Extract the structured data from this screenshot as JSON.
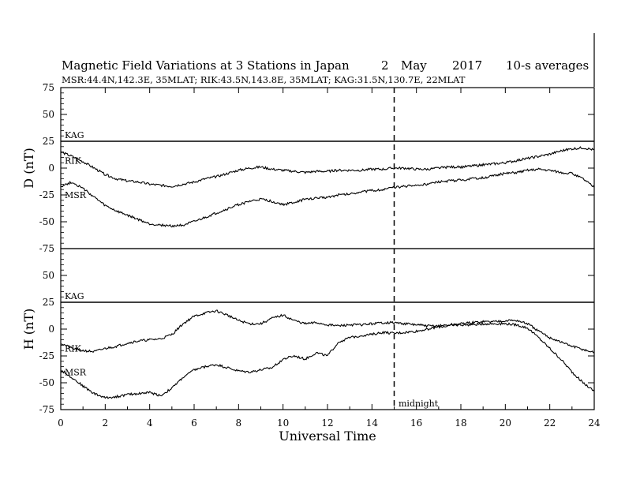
{
  "header": {
    "title": "Magnetic Field Variations at 3 Stations in Japan",
    "day": "2",
    "month": "May",
    "year": "2017",
    "averaging": "10-s averages",
    "stations_line": "MSR:44.4N,142.3E, 35MLAT;  RIK:43.5N,143.8E, 35MLAT;  KAG:31.5N,130.7E, 22MLAT"
  },
  "chart_data": {
    "type": "line",
    "xlabel": "Universal Time",
    "xlim": [
      0,
      24
    ],
    "x_ticks": [
      "0",
      "2",
      "4",
      "6",
      "8",
      "10",
      "12",
      "14",
      "16",
      "18",
      "20",
      "22",
      "24"
    ],
    "midnight_label": "midnight",
    "midnight_ut": 15,
    "panels": [
      {
        "ylabel": "D (nT)",
        "ylim": [
          -75,
          75
        ],
        "y_ticks": [
          "75",
          "50",
          "25",
          "0",
          "-25",
          "-50",
          "-75"
        ],
        "series": [
          {
            "name": "KAG",
            "x": [
              0,
              24
            ],
            "values": [
              25,
              25
            ]
          },
          {
            "name": "RIK",
            "x": [
              0,
              0.5,
              1,
              1.5,
              2,
              2.5,
              3,
              3.5,
              4,
              4.5,
              5,
              5.5,
              6,
              6.5,
              7,
              7.5,
              8,
              8.5,
              9,
              9.5,
              10,
              10.5,
              11,
              11.5,
              12,
              12.5,
              13,
              13.5,
              14,
              14.5,
              15,
              15.5,
              16,
              16.5,
              17,
              17.5,
              18,
              18.5,
              19,
              19.5,
              20,
              20.5,
              21,
              21.5,
              22,
              22.5,
              23,
              23.5,
              24
            ],
            "values": [
              15,
              11,
              6,
              0,
              -6,
              -10,
              -12,
              -13,
              -15,
              -16,
              -17,
              -15,
              -13,
              -10,
              -8,
              -5,
              -2,
              0,
              1,
              -1,
              -2,
              -3,
              -4,
              -3,
              -3,
              -2,
              -2,
              -2,
              -1,
              -1,
              0,
              0,
              -1,
              -1,
              0,
              1,
              1,
              2,
              3,
              4,
              5,
              7,
              9,
              11,
              13,
              16,
              18,
              19,
              17
            ]
          },
          {
            "name": "MSR",
            "x": [
              0,
              0.5,
              1,
              1.5,
              2,
              2.5,
              3,
              3.5,
              4,
              4.5,
              5,
              5.5,
              6,
              6.5,
              7,
              7.5,
              8,
              8.5,
              9,
              9.5,
              10,
              10.5,
              11,
              11.5,
              12,
              12.5,
              13,
              13.5,
              14,
              14.5,
              15,
              15.5,
              16,
              16.5,
              17,
              17.5,
              18,
              18.5,
              19,
              19.5,
              20,
              20.5,
              21,
              21.5,
              22,
              22.5,
              23,
              23.5,
              24
            ],
            "values": [
              -17,
              -13,
              -19,
              -27,
              -35,
              -40,
              -44,
              -48,
              -52,
              -53,
              -54,
              -53,
              -50,
              -46,
              -42,
              -38,
              -34,
              -31,
              -29,
              -31,
              -34,
              -32,
              -29,
              -28,
              -27,
              -25,
              -24,
              -22,
              -21,
              -20,
              -18,
              -17,
              -16,
              -15,
              -13,
              -12,
              -11,
              -10,
              -9,
              -7,
              -5,
              -4,
              -2,
              -1,
              -2,
              -4,
              -5,
              -10,
              -18
            ]
          }
        ]
      },
      {
        "ylabel": "H (nT)",
        "ylim": [
          -75,
          75
        ],
        "y_ticks": [
          "75",
          "50",
          "25",
          "0",
          "-25",
          "-50",
          "-75"
        ],
        "series": [
          {
            "name": "KAG",
            "x": [
              0,
              24
            ],
            "values": [
              25,
              25
            ]
          },
          {
            "name": "RIK",
            "x": [
              0,
              0.5,
              1,
              1.5,
              2,
              2.5,
              3,
              3.5,
              4,
              4.5,
              5,
              5.5,
              6,
              6.5,
              7,
              7.5,
              8,
              8.5,
              9,
              9.5,
              10,
              10.5,
              11,
              11.5,
              12,
              12.5,
              13,
              13.5,
              14,
              14.5,
              15,
              15.5,
              16,
              16.5,
              17,
              17.5,
              18,
              18.5,
              19,
              19.5,
              20,
              20.5,
              21,
              21.5,
              22,
              22.5,
              23,
              23.5,
              24
            ],
            "values": [
              -13,
              -18,
              -20,
              -21,
              -18,
              -16,
              -13,
              -11,
              -10,
              -9,
              -5,
              5,
              12,
              15,
              17,
              13,
              8,
              5,
              5,
              10,
              13,
              8,
              5,
              6,
              4,
              3,
              4,
              4,
              5,
              6,
              6,
              5,
              4,
              3,
              3,
              4,
              5,
              6,
              7,
              7,
              8,
              8,
              5,
              -2,
              -8,
              -12,
              -16,
              -19,
              -22
            ]
          },
          {
            "name": "MSR",
            "x": [
              0,
              0.5,
              1,
              1.5,
              2,
              2.5,
              3,
              3.5,
              4,
              4.5,
              5,
              5.5,
              6,
              6.5,
              7,
              7.5,
              8,
              8.5,
              9,
              9.5,
              10,
              10.5,
              11,
              11.5,
              12,
              12.5,
              13,
              13.5,
              14,
              14.5,
              15,
              15.5,
              16,
              16.5,
              17,
              17.5,
              18,
              18.5,
              19,
              19.5,
              20,
              20.5,
              21,
              21.5,
              22,
              22.5,
              23,
              23.5,
              24
            ],
            "values": [
              -38,
              -45,
              -53,
              -60,
              -64,
              -63,
              -61,
              -60,
              -59,
              -62,
              -55,
              -45,
              -38,
              -35,
              -33,
              -36,
              -39,
              -40,
              -38,
              -36,
              -28,
              -25,
              -28,
              -22,
              -25,
              -12,
              -8,
              -6,
              -5,
              -3,
              -4,
              -3,
              -2,
              0,
              2,
              3,
              4,
              4,
              5,
              5,
              5,
              4,
              1,
              -8,
              -18,
              -28,
              -40,
              -50,
              -58
            ]
          }
        ]
      }
    ]
  }
}
